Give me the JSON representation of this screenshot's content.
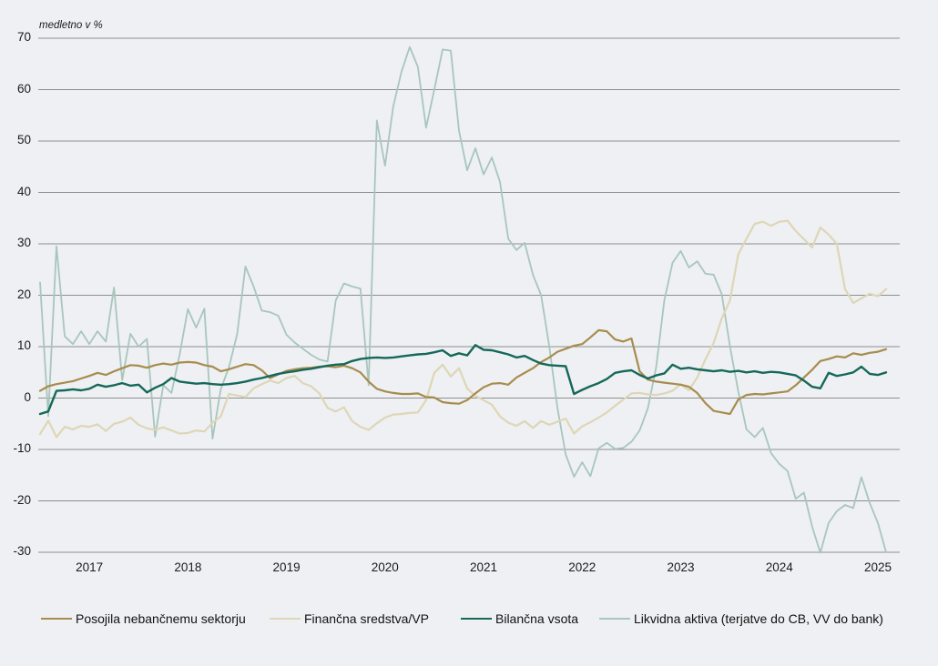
{
  "note": "medletno v %",
  "chart_data": {
    "type": "line",
    "title": "",
    "xlabel": "",
    "ylabel": "medletno v %",
    "frequency": "monthly",
    "x_start": "2016-07",
    "x_end": "2025-02",
    "ylim": [
      -30,
      70
    ],
    "y_ticks": [
      70,
      60,
      50,
      40,
      30,
      20,
      10,
      0,
      -10,
      -20,
      -30
    ],
    "x_year_labels": [
      "2017",
      "2018",
      "2019",
      "2020",
      "2021",
      "2022",
      "2023",
      "2024",
      "2025"
    ],
    "grid": "horizontal",
    "legend_position": "bottom",
    "background_color": "#eef0f3",
    "gridline_color": "#8e8e8e",
    "series": [
      {
        "name": "Posojila nebančnemu sektorju",
        "color": "#a78c4d",
        "values": [
          1.4,
          2.3,
          2.7,
          3.0,
          3.3,
          3.8,
          4.3,
          4.9,
          4.5,
          5.2,
          5.8,
          6.4,
          6.3,
          5.9,
          6.4,
          6.7,
          6.5,
          6.9,
          7.0,
          6.9,
          6.4,
          6.1,
          5.2,
          5.6,
          6.1,
          6.6,
          6.4,
          5.4,
          3.9,
          4.6,
          5.3,
          5.6,
          5.8,
          5.9,
          6.1,
          6.2,
          6.0,
          6.3,
          5.8,
          5.0,
          3.2,
          1.8,
          1.3,
          1.0,
          0.8,
          0.8,
          0.9,
          0.2,
          0.1,
          -0.8,
          -1.0,
          -1.1,
          -0.4,
          0.9,
          2.1,
          2.8,
          2.9,
          2.6,
          4.0,
          4.9,
          5.8,
          7.0,
          7.9,
          9.0,
          9.6,
          10.2,
          10.5,
          11.8,
          13.2,
          13.0,
          11.4,
          11.0,
          11.6,
          5.2,
          3.6,
          3.2,
          3.0,
          2.8,
          2.6,
          2.2,
          1.0,
          -1.0,
          -2.5,
          -2.8,
          -3.1,
          -0.3,
          0.6,
          0.8,
          0.7,
          0.9,
          1.1,
          1.3,
          2.5,
          4.0,
          5.5,
          7.2,
          7.6,
          8.1,
          7.9,
          8.7,
          8.4,
          8.8,
          9.0,
          9.5
        ]
      },
      {
        "name": "Finančna sredstva/VP",
        "color": "#ded6b6",
        "values": [
          -7.0,
          -4.4,
          -7.6,
          -5.6,
          -6.1,
          -5.4,
          -5.6,
          -5.1,
          -6.4,
          -5.0,
          -4.6,
          -3.8,
          -5.2,
          -5.9,
          -6.2,
          -5.7,
          -6.3,
          -6.9,
          -6.8,
          -6.3,
          -6.5,
          -4.8,
          -3.6,
          0.8,
          0.5,
          0.2,
          1.9,
          2.7,
          3.4,
          2.9,
          3.9,
          4.3,
          2.9,
          2.3,
          0.9,
          -1.9,
          -2.6,
          -1.8,
          -4.5,
          -5.6,
          -6.2,
          -4.9,
          -3.8,
          -3.2,
          -3.1,
          -2.9,
          -2.8,
          -0.4,
          4.9,
          6.5,
          4.2,
          5.8,
          1.9,
          0.4,
          -0.4,
          -1.3,
          -3.6,
          -4.8,
          -5.4,
          -4.5,
          -5.8,
          -4.5,
          -5.2,
          -4.6,
          -4.0,
          -6.9,
          -5.5,
          -4.7,
          -3.8,
          -2.8,
          -1.5,
          -0.3,
          0.9,
          1.0,
          0.7,
          0.6,
          0.9,
          1.4,
          2.7,
          1.5,
          4.0,
          7.5,
          10.7,
          15.5,
          19.0,
          28.0,
          31.0,
          33.9,
          34.3,
          33.5,
          34.3,
          34.5,
          32.5,
          30.9,
          29.3,
          33.2,
          31.8,
          30.0,
          21.2,
          18.5,
          19.4,
          20.3,
          19.8,
          21.2
        ]
      },
      {
        "name": "Bilančna vsota",
        "color": "#15685a",
        "values": [
          -3.1,
          -2.6,
          1.4,
          1.5,
          1.7,
          1.5,
          1.8,
          2.6,
          2.2,
          2.5,
          2.9,
          2.4,
          2.6,
          1.1,
          2.0,
          2.7,
          3.9,
          3.2,
          3.0,
          2.8,
          2.9,
          2.7,
          2.6,
          2.7,
          2.9,
          3.2,
          3.6,
          3.9,
          4.3,
          4.7,
          5.0,
          5.2,
          5.5,
          5.7,
          6.0,
          6.3,
          6.5,
          6.6,
          7.2,
          7.6,
          7.8,
          7.9,
          7.8,
          7.9,
          8.1,
          8.3,
          8.5,
          8.6,
          8.9,
          9.3,
          8.2,
          8.7,
          8.3,
          10.3,
          9.4,
          9.3,
          8.9,
          8.5,
          7.9,
          8.2,
          7.4,
          6.7,
          6.4,
          6.3,
          6.2,
          0.8,
          1.6,
          2.3,
          2.9,
          3.7,
          4.9,
          5.2,
          5.4,
          4.5,
          3.8,
          4.4,
          4.8,
          6.5,
          5.7,
          5.9,
          5.6,
          5.4,
          5.2,
          5.4,
          5.1,
          5.3,
          5.0,
          5.2,
          4.9,
          5.1,
          5.0,
          4.7,
          4.4,
          3.4,
          2.2,
          1.9,
          4.9,
          4.3,
          4.6,
          5.0,
          6.1,
          4.7,
          4.5,
          5.0
        ]
      },
      {
        "name": "Likvidna aktiva (terjatve do CB, VV do bank)",
        "color": "#a8c6bc",
        "values": [
          22.5,
          -3.5,
          29.5,
          12.0,
          10.5,
          13.0,
          10.5,
          13.0,
          11.0,
          21.5,
          3.5,
          12.5,
          10.0,
          11.5,
          -7.5,
          2.5,
          1.0,
          8.5,
          17.3,
          13.7,
          17.4,
          -7.9,
          1.7,
          6.0,
          12.5,
          25.6,
          21.7,
          17.0,
          16.7,
          16.0,
          12.3,
          10.8,
          9.6,
          8.4,
          7.5,
          7.1,
          19.0,
          22.3,
          21.7,
          21.3,
          2.5,
          54.0,
          45.2,
          56.7,
          63.5,
          68.3,
          64.4,
          52.6,
          60.0,
          67.8,
          67.6,
          52.0,
          44.3,
          48.6,
          43.5,
          46.8,
          42.0,
          31.0,
          28.8,
          30.2,
          24.0,
          20.0,
          10.0,
          -2.0,
          -11.0,
          -15.3,
          -12.5,
          -15.2,
          -9.8,
          -8.7,
          -9.9,
          -9.7,
          -8.5,
          -6.3,
          -2.0,
          6.0,
          19.0,
          26.3,
          28.6,
          25.4,
          26.6,
          24.2,
          24.0,
          20.2,
          10.0,
          1.3,
          -6.1,
          -7.6,
          -5.8,
          -10.7,
          -12.8,
          -14.2,
          -19.6,
          -18.4,
          -25.0,
          -30.3,
          -24.3,
          -22.0,
          -20.8,
          -21.4,
          -15.4,
          -20.4,
          -24.3,
          -30.0
        ]
      }
    ]
  }
}
